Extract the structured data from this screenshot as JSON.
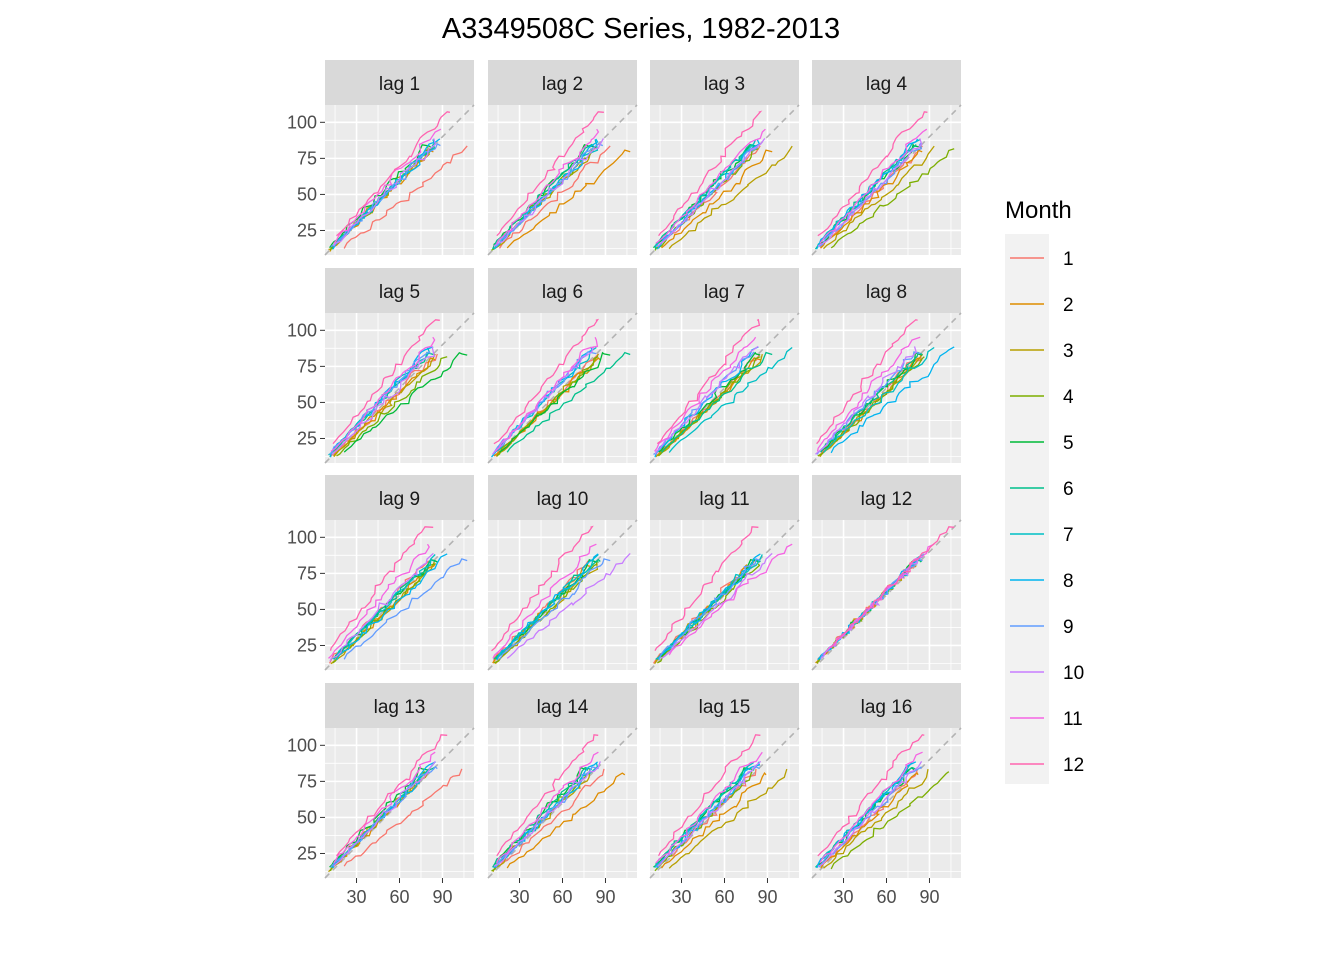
{
  "chart_data": {
    "type": "line",
    "subtype": "lag-plot",
    "title": "A3349508C Series, 1982-2013",
    "panels": [
      "lag 1",
      "lag 2",
      "lag 3",
      "lag 4",
      "lag 5",
      "lag 6",
      "lag 7",
      "lag 8",
      "lag 9",
      "lag 10",
      "lag 11",
      "lag 12",
      "lag 13",
      "lag 14",
      "lag 15",
      "lag 16"
    ],
    "facet_layout": {
      "rows": 4,
      "cols": 4
    },
    "x_ticks": [
      "30",
      "60",
      "90"
    ],
    "y_ticks": [
      "25",
      "50",
      "75",
      "100"
    ],
    "xlim": [
      8,
      112
    ],
    "ylim": [
      8,
      112
    ],
    "reference_line": "y = x (dashed)",
    "grid": true,
    "legend": {
      "title": "Month",
      "position": "right",
      "entries": [
        "1",
        "2",
        "3",
        "4",
        "5",
        "6",
        "7",
        "8",
        "9",
        "10",
        "11",
        "12"
      ],
      "colors": [
        "#F8766D",
        "#DE8C00",
        "#B79F00",
        "#7CAE00",
        "#00BA38",
        "#00C08B",
        "#00BFC4",
        "#00B4F0",
        "#619CFF",
        "#C77CFF",
        "#F564E3",
        "#FF64B0"
      ]
    },
    "series_profile": {
      "years": "1982-2013",
      "start_value": 12,
      "end_value": 88,
      "seasonal_peak_month": 12,
      "seasonal_peak_amplitude": 22
    }
  }
}
